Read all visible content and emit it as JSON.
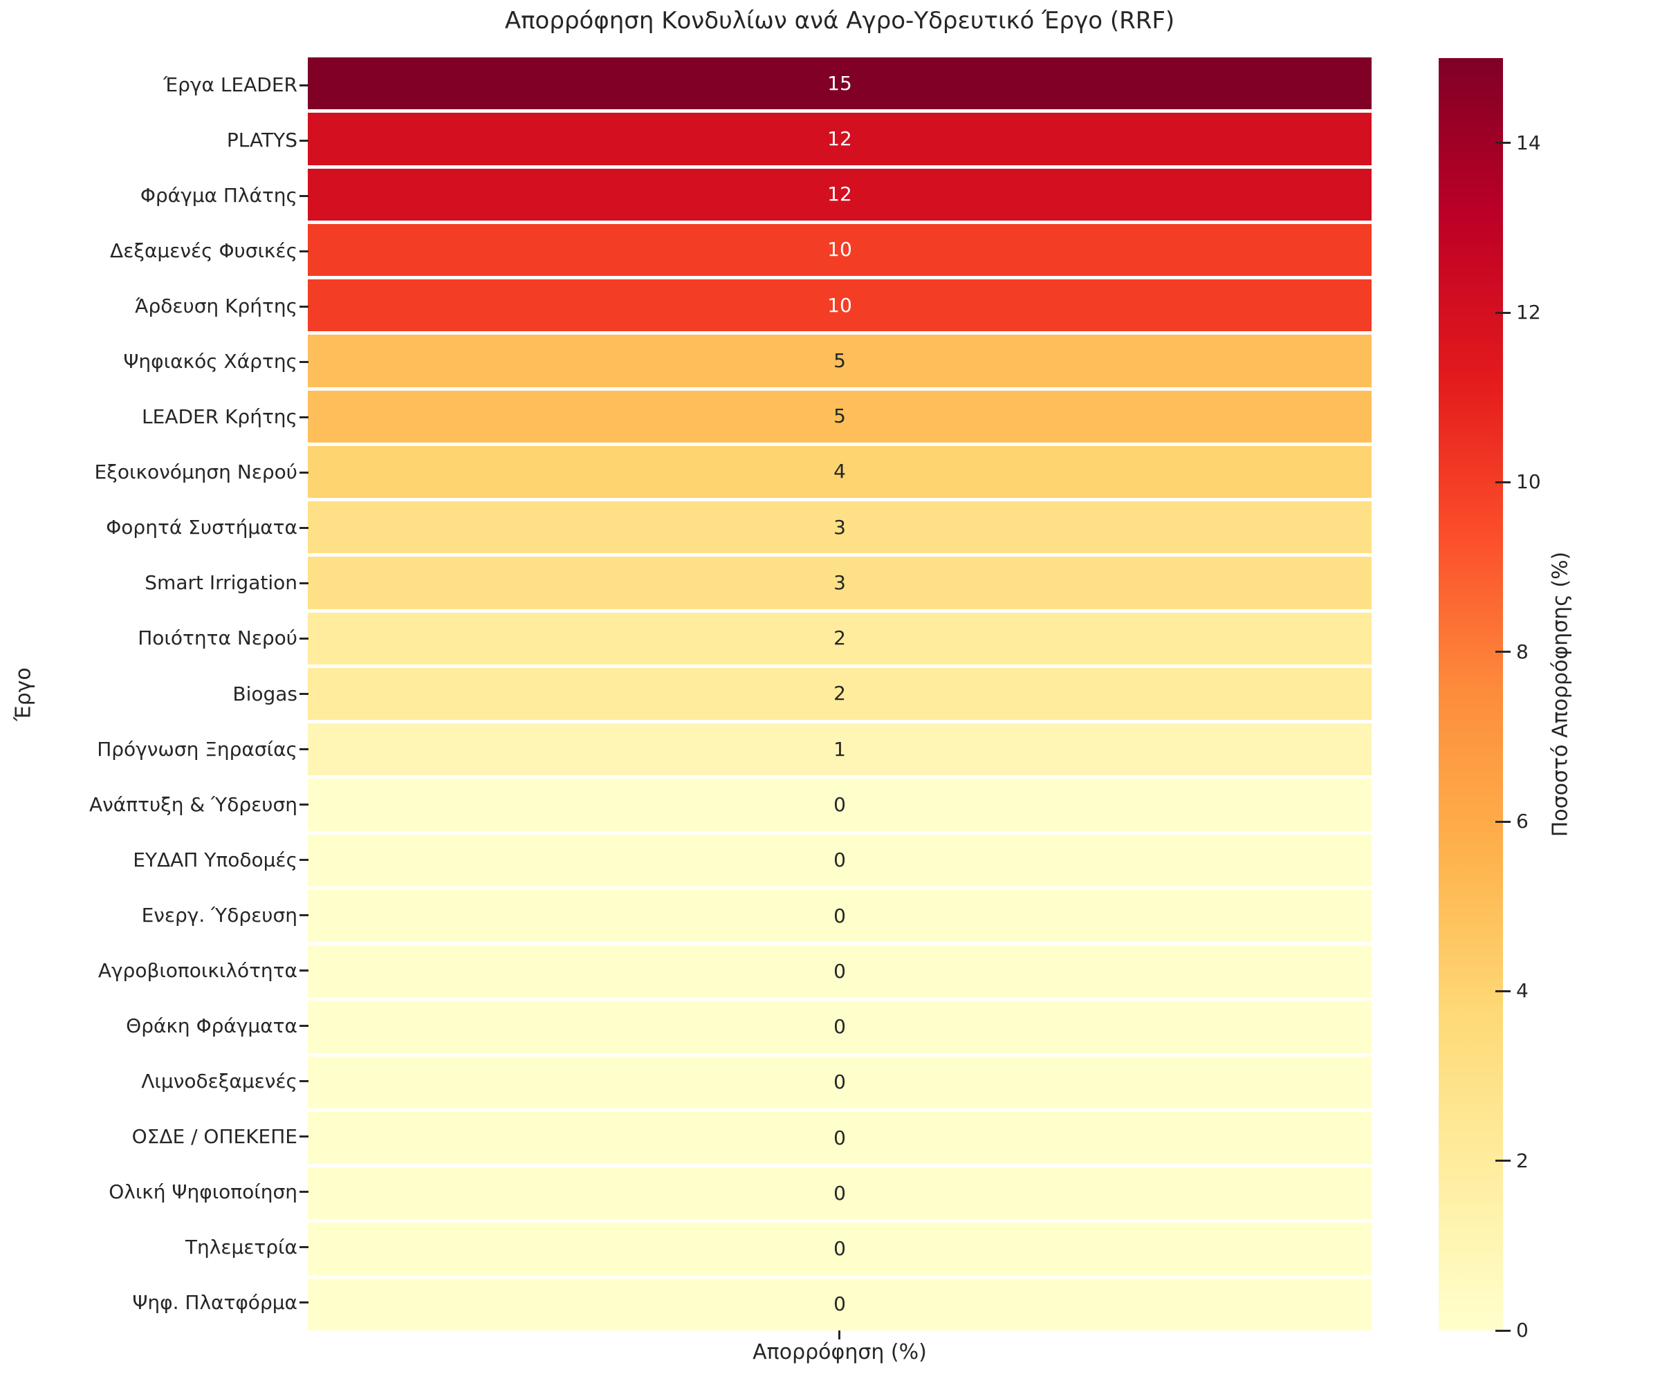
{
  "title": "Απορρόφηση Κονδυλίων ανά Αγρο-Υδρευτικό Έργο (RRF)",
  "colorbar": {
    "label": "Ποσοστό Απορρόφησης (%)",
    "ticks": [
      0,
      2,
      4,
      6,
      8,
      10,
      12,
      14
    ],
    "min": 0,
    "max": 15,
    "colormap": "YlOrRd",
    "gradient_stops": [
      "#ffffcc",
      "#ffeda0",
      "#fed976",
      "#feb24c",
      "#fd8d3c",
      "#fc4e2a",
      "#e31a1c",
      "#bd0026",
      "#800026"
    ],
    "dark_text_color": "#262626",
    "light_text_color": "#ffffff"
  },
  "chart_data": {
    "type": "heatmap",
    "title": "Απορρόφηση Κονδυλίων ανά Αγρο-Υδρευτικό Έργο (RRF)",
    "xlabel": "Απορρόφηση (%)",
    "ylabel": "Έργο",
    "columns": 1,
    "vmin": 0,
    "vmax": 15,
    "annotated": true,
    "grid": false,
    "legend_position": "right-colorbar",
    "categories": [
      "Έργα LEADER",
      "PLATYS",
      "Φράγμα Πλάτης",
      "Δεξαμενές Φυσικές",
      "Άρδευση Κρήτης",
      "Ψηφιακός Χάρτης",
      "LEADER Κρήτης",
      "Εξοικονόμηση Νερού",
      "Φορητά Συστήματα",
      "Smart Irrigation",
      "Ποιότητα Νερού",
      "Biogas",
      "Πρόγνωση Ξηρασίας",
      "Ανάπτυξη & Ύδρευση",
      "ΕΥΔΑΠ Υποδομές",
      "Ενεργ. Ύδρευση",
      "Αγροβιοποικιλότητα",
      "Θράκη Φράγματα",
      "Λιμνοδεξαμενές",
      "ΟΣΔΕ / ΟΠΕΚΕΠΕ",
      "Ολική Ψηφιοποίηση",
      "Τηλεμετρία",
      "Ψηφ. Πλατφόρμα"
    ],
    "values": [
      15,
      12,
      12,
      10,
      10,
      5,
      5,
      4,
      3,
      3,
      2,
      2,
      1,
      0,
      0,
      0,
      0,
      0,
      0,
      0,
      0,
      0,
      0
    ],
    "cell_colors": [
      "#800026",
      "#d41020",
      "#d41020",
      "#f43d25",
      "#f43d25",
      "#febf5a",
      "#febf5a",
      "#fed470",
      "#fee187",
      "#fee187",
      "#ffec9d",
      "#ffec9d",
      "#fff5b4",
      "#ffffcc",
      "#ffffcc",
      "#ffffcc",
      "#ffffcc",
      "#ffffcc",
      "#ffffcc",
      "#ffffcc",
      "#ffffcc",
      "#ffffcc",
      "#ffffcc"
    ]
  }
}
